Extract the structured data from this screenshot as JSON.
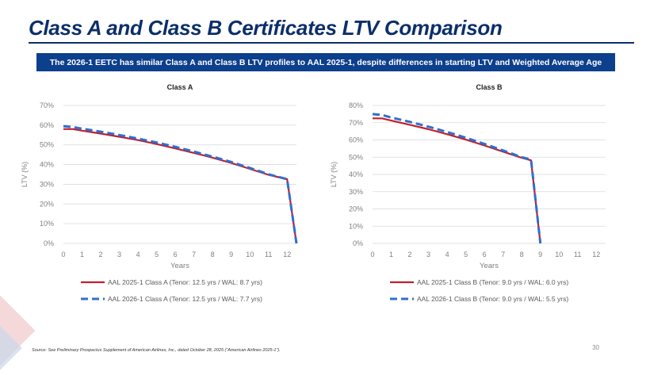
{
  "slide": {
    "title": "Class A and Class B Certificates LTV Comparison",
    "banner": "The 2026-1 EETC has similar Class A and Class B LTV profiles to AAL 2025-1, despite differences in starting LTV and Weighted Average Age",
    "footnote": "Source: See Preliminary Prospectus Supplement of American Airlines, Inc., dated October 28, 2025 (“American Airlines 2025-1”).",
    "page_number": "30"
  },
  "colors": {
    "title": "#0b2f6a",
    "banner_bg": "#0c3f8c",
    "series_2025": "#c0202f",
    "series_2026": "#2f6fcf",
    "grid": "#d9d9d9",
    "tick_text": "#7f7f7f"
  },
  "chart_data": [
    {
      "type": "line",
      "title": "Class A",
      "xlabel": "Years",
      "ylabel": "LTV (%)",
      "xlim": [
        0,
        12.5
      ],
      "ylim": [
        0,
        70
      ],
      "x_ticks": [
        0,
        1,
        2,
        3,
        4,
        5,
        6,
        7,
        8,
        9,
        10,
        11,
        12
      ],
      "y_ticks": [
        0,
        10,
        20,
        30,
        40,
        50,
        60,
        70
      ],
      "y_tick_format": "percent",
      "grid": true,
      "legend_position": "bottom",
      "series": [
        {
          "name": "AAL 2025-1 Class A (Tenor: 12.5 yrs / WAL: 8.7 yrs)",
          "style": "solid",
          "color": "#c0202f",
          "x": [
            0,
            0.5,
            1,
            2,
            3,
            4,
            5,
            6,
            7,
            8,
            9,
            10,
            11,
            12,
            12.5
          ],
          "y": [
            58,
            58,
            57.2,
            55.7,
            54.1,
            52.4,
            50.4,
            48.2,
            45.9,
            43.5,
            40.8,
            37.8,
            34.8,
            32.6,
            0
          ]
        },
        {
          "name": "AAL 2026-1 Class A (Tenor: 12.5 yrs / WAL: 7.7 yrs)",
          "style": "dashed",
          "color": "#2f6fcf",
          "x": [
            0,
            0.5,
            1,
            2,
            3,
            4,
            5,
            6,
            7,
            8,
            9,
            10,
            11,
            12,
            12.5
          ],
          "y": [
            59.5,
            59,
            58.2,
            56.7,
            55.0,
            53.2,
            51.2,
            49.0,
            46.6,
            44.0,
            41.3,
            38.3,
            35.1,
            32.6,
            0
          ]
        }
      ]
    },
    {
      "type": "line",
      "title": "Class B",
      "xlabel": "Years",
      "ylabel": "LTV (%)",
      "xlim": [
        0,
        12.5
      ],
      "ylim": [
        0,
        80
      ],
      "x_ticks": [
        0,
        1,
        2,
        3,
        4,
        5,
        6,
        7,
        8,
        9,
        10,
        11,
        12
      ],
      "y_ticks": [
        0,
        10,
        20,
        30,
        40,
        50,
        60,
        70,
        80
      ],
      "y_tick_format": "percent",
      "grid": true,
      "legend_position": "bottom",
      "series": [
        {
          "name": "AAL 2025-1 Class B (Tenor: 9.0 yrs / WAL: 6.0 yrs)",
          "style": "solid",
          "color": "#c0202f",
          "x": [
            0,
            0.5,
            1,
            2,
            3,
            4,
            5,
            6,
            7,
            8,
            8.5,
            9
          ],
          "y": [
            72.5,
            72.5,
            71.2,
            68.8,
            66.2,
            63.3,
            60.2,
            56.8,
            53.2,
            49.6,
            48.2,
            0
          ]
        },
        {
          "name": "AAL 2026-1 Class B (Tenor: 9.0 yrs / WAL: 5.5 yrs)",
          "style": "dashed",
          "color": "#2f6fcf",
          "x": [
            0,
            0.5,
            1,
            2,
            3,
            4,
            5,
            6,
            7,
            8,
            8.5,
            9
          ],
          "y": [
            75,
            74.5,
            73.0,
            70.5,
            67.7,
            64.6,
            61.3,
            57.7,
            53.9,
            50.0,
            48.6,
            0
          ]
        }
      ]
    }
  ]
}
